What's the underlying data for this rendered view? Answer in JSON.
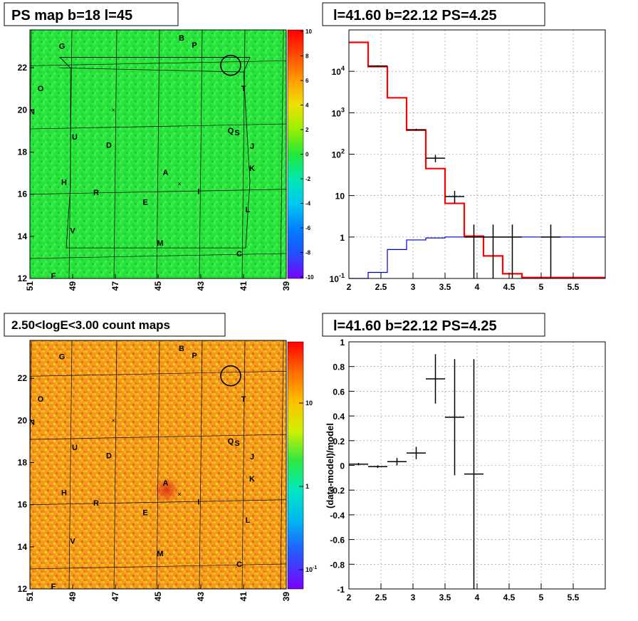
{
  "panels": {
    "top_left_title": "PS map b=18 l=45",
    "top_right_title": "l=41.60 b=22.12 PS=4.25",
    "bottom_left_title": "2.50<logE<3.00 count maps",
    "bottom_right_title": "l=41.60 b=22.12 PS=4.25"
  },
  "colors": {
    "map_green": "#22e83a",
    "map_orange": "#f08a1c",
    "model_red": "#ff0000",
    "model_blue": "#0000cc",
    "data_black": "#000000"
  },
  "chart_data": [
    {
      "type": "heatmap",
      "title": "PS map b=18 l=45",
      "x_ticks": [
        "51",
        "49",
        "47",
        "45",
        "43",
        "41",
        "39"
      ],
      "y_ticks": [
        "12",
        "14",
        "16",
        "18",
        "20",
        "22"
      ],
      "xlim": [
        51,
        39
      ],
      "ylim": [
        12,
        23.8
      ],
      "colorbar": {
        "ticks": [
          "10",
          "8",
          "6",
          "4",
          "2",
          "0",
          "-2",
          "-4",
          "-6",
          "-8",
          "-10"
        ],
        "range": [
          -10,
          10
        ]
      },
      "source_labels": [
        "G",
        "B",
        "P",
        "O",
        "T",
        "N",
        "Q",
        "S",
        "U",
        "D",
        "J",
        "K",
        "A",
        "H",
        "R",
        "I",
        "E",
        "L",
        "V",
        "M",
        "C",
        "F"
      ],
      "marked_source": {
        "l": 41.6,
        "b": 22.12
      }
    },
    {
      "type": "line",
      "title": "l=41.60 b=22.12 PS=4.25",
      "x_ticks": [
        "2",
        "2.5",
        "3",
        "3.5",
        "4",
        "4.5",
        "5",
        "5.5"
      ],
      "y_ticks": [
        "10^-1",
        "1",
        "10",
        "10^2",
        "10^3",
        "10^4"
      ],
      "xlim": [
        2,
        6
      ],
      "ylim": [
        0.1,
        100000
      ],
      "log_y": true,
      "grid": true,
      "series": [
        {
          "color": "red",
          "edges": [
            2,
            2.3,
            2.6,
            2.9,
            3.2,
            3.5,
            3.8,
            4.1,
            4.4,
            4.7,
            5.0,
            6.0
          ],
          "values": [
            50000,
            13000,
            2300,
            380,
            45,
            6.5,
            1.05,
            0.35,
            0.13,
            0.105,
            0.105
          ]
        },
        {
          "color": "blue",
          "edges": [
            2,
            2.3,
            2.6,
            2.9,
            3.2,
            3.5,
            3.8,
            4.1,
            4.4,
            4.7,
            5.0,
            5.3,
            6.0
          ],
          "values": [
            0.1,
            0.14,
            0.5,
            0.85,
            0.95,
            1.0,
            1.0,
            1.0,
            1.0,
            1.0,
            1.0,
            1.0
          ]
        },
        {
          "color": "black",
          "x": [
            2.45,
            3.05,
            3.35,
            3.65,
            3.95,
            4.25,
            4.55,
            5.15
          ],
          "y": [
            13500,
            390,
            80,
            9.5,
            1.0,
            1.0,
            1.0,
            1.0
          ],
          "ylo": [
            13000,
            370,
            64,
            6.5,
            0.1,
            0.1,
            0.1,
            0.1
          ],
          "yhi": [
            14000,
            410,
            96,
            13,
            2.0,
            2.0,
            2.0,
            2.0
          ],
          "xerr": 0.15
        }
      ]
    },
    {
      "type": "heatmap",
      "title": "2.50<logE<3.00 count maps",
      "x_ticks": [
        "51",
        "49",
        "47",
        "45",
        "43",
        "41",
        "39"
      ],
      "y_ticks": [
        "12",
        "14",
        "16",
        "18",
        "20",
        "22"
      ],
      "xlim": [
        51,
        39
      ],
      "ylim": [
        12,
        23.8
      ],
      "colorbar": {
        "ticks": [
          "10",
          "1",
          "10^-1"
        ],
        "log": true
      },
      "source_labels": [
        "G",
        "B",
        "P",
        "O",
        "T",
        "N",
        "Q",
        "S",
        "U",
        "D",
        "J",
        "K",
        "A",
        "H",
        "R",
        "I",
        "E",
        "L",
        "V",
        "M",
        "C",
        "F"
      ],
      "marked_source": {
        "l": 41.6,
        "b": 22.12
      },
      "hotspot": {
        "l": 44.6,
        "b": 16.7
      }
    },
    {
      "type": "scatter",
      "title": "l=41.60 b=22.12 PS=4.25",
      "ylabel": "(data-model)/model",
      "x_ticks": [
        "2",
        "2.5",
        "3",
        "3.5",
        "4",
        "4.5",
        "5",
        "5.5"
      ],
      "y_ticks": [
        "-1",
        "-0.8",
        "-0.6",
        "-0.4",
        "-0.2",
        "0",
        "0.2",
        "0.4",
        "0.6",
        "0.8",
        "1"
      ],
      "xlim": [
        2,
        6
      ],
      "ylim": [
        -1,
        1
      ],
      "grid": true,
      "points": {
        "x": [
          2.15,
          2.45,
          2.75,
          3.05,
          3.35,
          3.65,
          3.95
        ],
        "y": [
          0.01,
          -0.01,
          0.03,
          0.1,
          0.7,
          0.39,
          -0.07
        ],
        "ylo": [
          0.0,
          -0.02,
          0.0,
          0.05,
          0.5,
          -0.08,
          -1.0
        ],
        "yhi": [
          0.02,
          0.0,
          0.06,
          0.15,
          0.9,
          0.86,
          0.86
        ],
        "xerr": 0.15
      }
    }
  ],
  "map_sources": [
    {
      "name": "G",
      "l": 49.5,
      "b": 22.9
    },
    {
      "name": "B",
      "l": 43.9,
      "b": 23.3
    },
    {
      "name": "P",
      "l": 43.3,
      "b": 22.95
    },
    {
      "name": "O",
      "l": 50.5,
      "b": 20.9
    },
    {
      "name": "T",
      "l": 41.0,
      "b": 20.9
    },
    {
      "name": "N",
      "l": 50.9,
      "b": 19.8
    },
    {
      "name": "Q",
      "l": 41.6,
      "b": 18.9
    },
    {
      "name": "S",
      "l": 41.3,
      "b": 18.8
    },
    {
      "name": "U",
      "l": 48.9,
      "b": 18.6
    },
    {
      "name": "D",
      "l": 47.3,
      "b": 18.2
    },
    {
      "name": "J",
      "l": 40.6,
      "b": 18.15
    },
    {
      "name": "K",
      "l": 40.6,
      "b": 17.1
    },
    {
      "name": "A",
      "l": 44.65,
      "b": 16.9
    },
    {
      "name": "H",
      "l": 49.4,
      "b": 16.45
    },
    {
      "name": "R",
      "l": 47.9,
      "b": 15.95
    },
    {
      "name": "I",
      "l": 43.1,
      "b": 16.0
    },
    {
      "name": "E",
      "l": 45.6,
      "b": 15.5
    },
    {
      "name": "L",
      "l": 40.8,
      "b": 15.15
    },
    {
      "name": "V",
      "l": 49.0,
      "b": 14.15
    },
    {
      "name": "M",
      "l": 44.9,
      "b": 13.55
    },
    {
      "name": "C",
      "l": 41.2,
      "b": 13.05
    },
    {
      "name": "F",
      "l": 49.9,
      "b": 12.0
    }
  ]
}
